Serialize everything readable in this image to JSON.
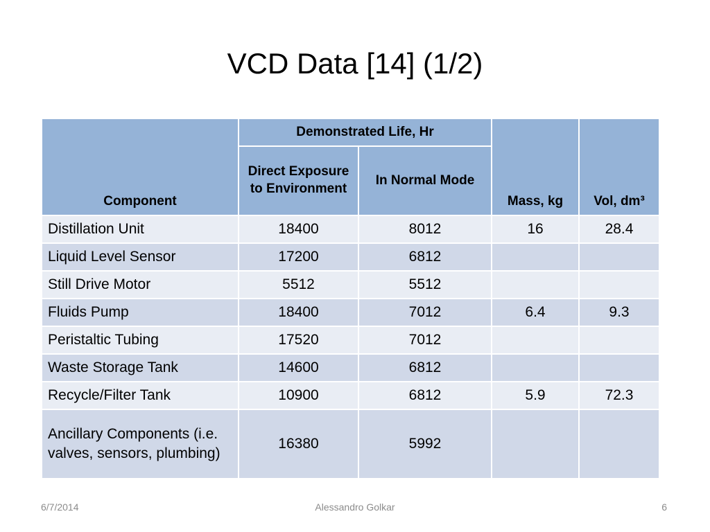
{
  "slide": {
    "title": "VCD Data [14] (1/2)"
  },
  "table": {
    "header": {
      "component": "Component",
      "life": "Demonstrated Life, Hr",
      "direct": "Direct Exposure to Environment",
      "normal": "In Normal Mode",
      "mass": "Mass, kg",
      "vol": "Vol, dm³"
    },
    "rows": [
      {
        "component": "Distillation Unit",
        "direct": 18400,
        "normal": 8012,
        "mass": 16,
        "vol": 28.4
      },
      {
        "component": "Liquid Level Sensor",
        "direct": 17200,
        "normal": 6812
      },
      {
        "component": "Still Drive Motor",
        "direct": 5512,
        "normal": 5512
      },
      {
        "component": "Fluids Pump",
        "direct": 18400,
        "normal": 7012,
        "mass": 6.4,
        "vol": 9.3
      },
      {
        "component": "Peristaltic Tubing",
        "direct": 17520,
        "normal": 7012
      },
      {
        "component": "Waste Storage Tank",
        "direct": 14600,
        "normal": 6812
      },
      {
        "component": "Recycle/Filter Tank",
        "direct": 10900,
        "normal": 6812,
        "mass": 5.9,
        "vol": 72.3
      },
      {
        "component": "Ancillary Components (i.e. valves, sensors, plumbing)",
        "direct": 16380,
        "normal": 5992
      }
    ]
  },
  "footer": {
    "date": "6/7/2014",
    "author": "Alessandro Golkar",
    "page": "6"
  }
}
